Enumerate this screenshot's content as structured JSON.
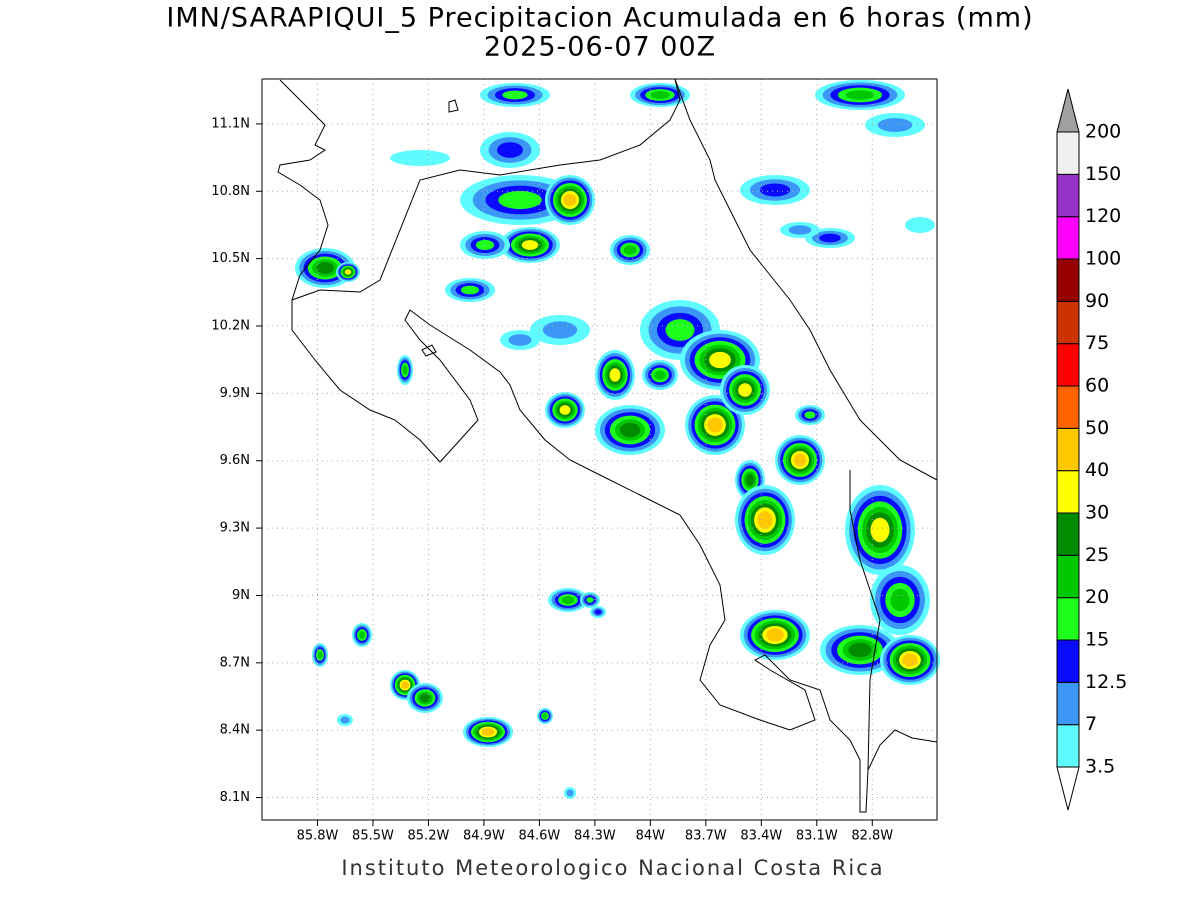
{
  "chart_data": {
    "type": "contour-map",
    "title": "IMN/SARAPIQUI_5 Precipitacion Acumulada en 6 horas (mm)",
    "subtitle": "2025-06-07 00Z",
    "footer": "Instituto Meteorologico Nacional Costa Rica",
    "xlim": [
      -86.1,
      -82.45
    ],
    "ylim": [
      8.0,
      11.3
    ],
    "xticks": [
      {
        "value": -85.8,
        "label": "85.8W"
      },
      {
        "value": -85.5,
        "label": "85.5W"
      },
      {
        "value": -85.2,
        "label": "85.2W"
      },
      {
        "value": -84.9,
        "label": "84.9W"
      },
      {
        "value": -84.6,
        "label": "84.6W"
      },
      {
        "value": -84.3,
        "label": "84.3W"
      },
      {
        "value": -84.0,
        "label": "84W"
      },
      {
        "value": -83.7,
        "label": "83.7W"
      },
      {
        "value": -83.4,
        "label": "83.4W"
      },
      {
        "value": -83.1,
        "label": "83.1W"
      },
      {
        "value": -82.8,
        "label": "82.8W"
      }
    ],
    "yticks": [
      {
        "value": 8.1,
        "label": "8.1N"
      },
      {
        "value": 8.4,
        "label": "8.4N"
      },
      {
        "value": 8.7,
        "label": "8.7N"
      },
      {
        "value": 9.0,
        "label": "9N"
      },
      {
        "value": 9.3,
        "label": "9.3N"
      },
      {
        "value": 9.6,
        "label": "9.6N"
      },
      {
        "value": 9.9,
        "label": "9.9N"
      },
      {
        "value": 10.2,
        "label": "10.2N"
      },
      {
        "value": 10.5,
        "label": "10.5N"
      },
      {
        "value": 10.8,
        "label": "10.8N"
      },
      {
        "value": 11.1,
        "label": "11.1N"
      }
    ],
    "grid": true,
    "colorbar": {
      "levels": [
        3.5,
        7,
        12.5,
        15,
        20,
        25,
        30,
        40,
        50,
        60,
        75,
        90,
        100,
        120,
        150,
        200
      ],
      "colors": [
        "#5ffcff",
        "#3c96f5",
        "#0a0aff",
        "#1eff1e",
        "#00c800",
        "#008c00",
        "#ffff00",
        "#ffc800",
        "#ff6400",
        "#ff0000",
        "#cc3300",
        "#960000",
        "#ff00ff",
        "#9632c8",
        "#f0f0f0"
      ],
      "under_color": "#ffffff",
      "over_color": "#a0a0a0"
    }
  }
}
